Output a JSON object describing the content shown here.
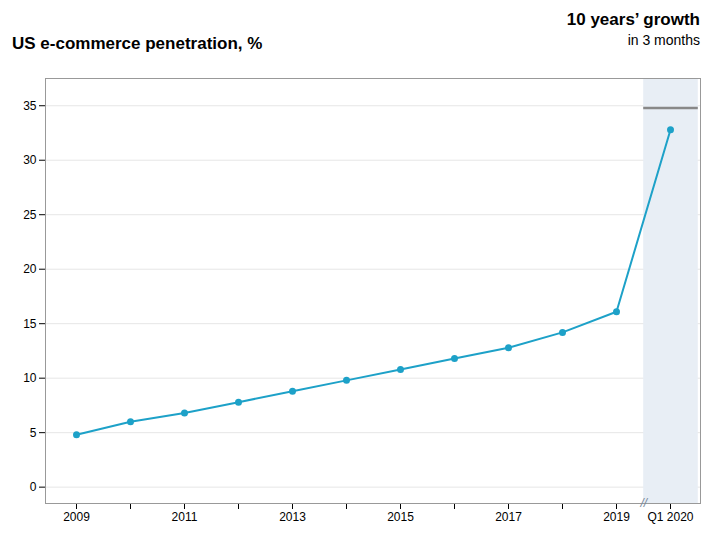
{
  "chart_data": {
    "type": "line",
    "title": "US e-commerce penetration, %",
    "categories": [
      "2009",
      null,
      "2011",
      null,
      "2013",
      null,
      "2015",
      null,
      "2017",
      null,
      "2019",
      "Q1 2020"
    ],
    "values": [
      4.8,
      6.0,
      6.8,
      7.8,
      8.8,
      9.8,
      10.8,
      11.8,
      12.8,
      14.2,
      16.1,
      32.8
    ],
    "color": "#1da1c8",
    "marker": "circle",
    "ylim": [
      -1.5,
      37.5
    ],
    "yticks": [
      0,
      5,
      10,
      15,
      20,
      25,
      30,
      35
    ],
    "grid": true,
    "annotations": [
      "10 years’ growth",
      "in 3 months",
      "//"
    ],
    "highlight_line_y": 34.8
  }
}
